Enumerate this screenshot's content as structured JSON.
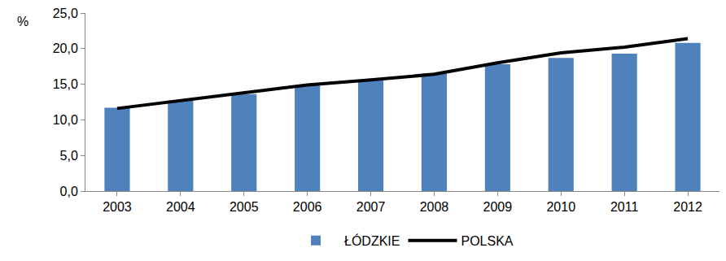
{
  "chart_data": {
    "type": "bar",
    "y_label": "%",
    "categories": [
      "2003",
      "2004",
      "2005",
      "2006",
      "2007",
      "2008",
      "2009",
      "2010",
      "2011",
      "2012"
    ],
    "series": [
      {
        "name": "ŁÓDZKIE",
        "type": "bar",
        "color": "#4f81bd",
        "values": [
          11.7,
          12.7,
          13.6,
          14.9,
          15.6,
          16.5,
          17.8,
          18.7,
          19.3,
          20.8
        ]
      },
      {
        "name": "POLSKA",
        "type": "line",
        "color": "#000000",
        "line_style": "solid",
        "values": [
          11.6,
          12.7,
          13.8,
          14.9,
          15.6,
          16.4,
          18.0,
          19.4,
          20.2,
          21.4
        ]
      }
    ],
    "ylim": [
      0,
      25
    ],
    "yticks": [
      {
        "value": 0,
        "label": "0,0"
      },
      {
        "value": 5,
        "label": "5,0"
      },
      {
        "value": 10,
        "label": "10,0"
      },
      {
        "value": 15,
        "label": "15,0"
      },
      {
        "value": 20,
        "label": "20,0"
      },
      {
        "value": 25,
        "label": "25,0"
      }
    ],
    "grid": false,
    "legend": "bottom"
  }
}
